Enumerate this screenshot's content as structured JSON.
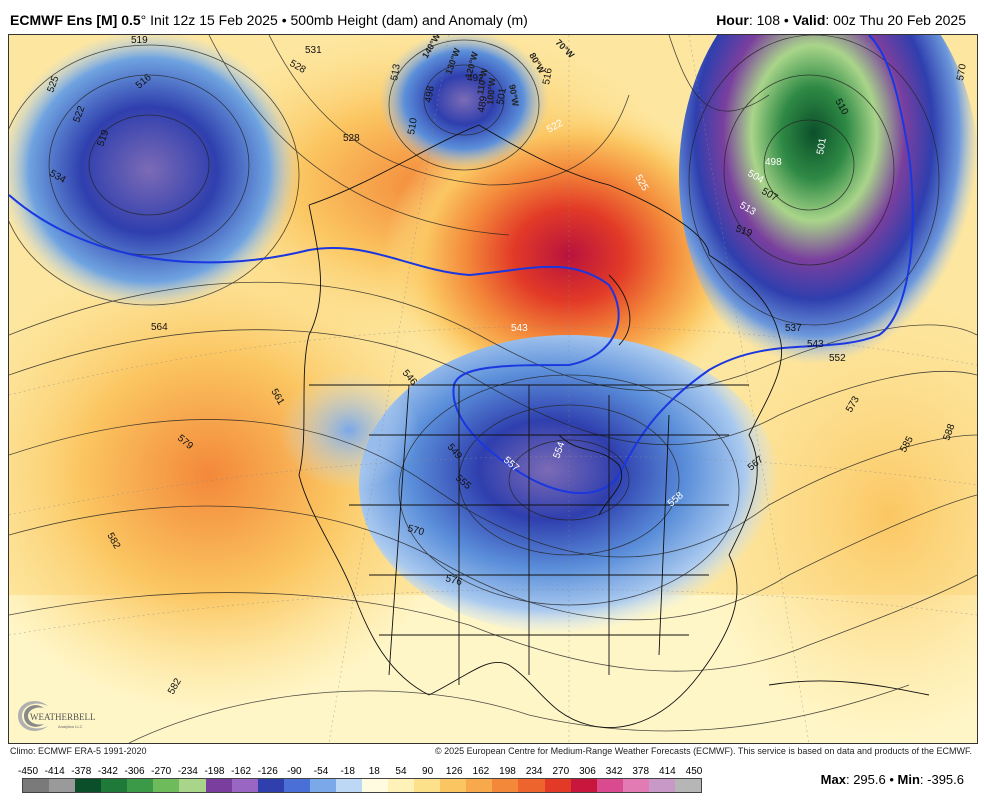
{
  "header": {
    "model": "ECMWF Ens [M] 0.5",
    "degree": "°",
    "init": " Init 12z 15 Feb 2025",
    "bullet": " • ",
    "field": "500mb Height (dam) and Anomaly (m)",
    "hour_label": "Hour",
    "hour_value": ": 108",
    "valid_label": "Valid",
    "valid_value": ": 00z Thu 20 Feb 2025"
  },
  "map": {
    "contour_labels": [
      "519",
      "525",
      "522",
      "519",
      "516",
      "534",
      "531",
      "528",
      "513",
      "510",
      "498",
      "492",
      "489",
      "501",
      "516",
      "522",
      "525",
      "528",
      "510",
      "498",
      "501",
      "504",
      "507",
      "513",
      "519",
      "537",
      "543",
      "552",
      "546",
      "543",
      "564",
      "561",
      "579",
      "582",
      "582",
      "549",
      "557",
      "554",
      "555",
      "558",
      "567",
      "570",
      "576",
      "573",
      "585",
      "588",
      "570"
    ],
    "meridian_labels": [
      "140°W",
      "130°W",
      "120°W",
      "110°W",
      "100°W",
      "90°W",
      "80°W",
      "70°W"
    ],
    "colors": {
      "deep_low": "#2a46b4",
      "low": "#6fa3e0",
      "neutral": "#fdf8d7",
      "warm": "#f3b252",
      "hot": "#e63b22",
      "very_hot": "#c4163f",
      "normal_contour": "#1a37e0"
    }
  },
  "logo": {
    "text": "WEATHERBELL",
    "sub": "Analytics LLC"
  },
  "credits": {
    "climo": "Climo: ECMWF ERA-5 1991-2020",
    "copyright": "© 2025 European Centre for Medium-Range Weather Forecasts (ECMWF). This service is based on data and products of the ECMWF."
  },
  "scale": {
    "ticks": [
      "-450",
      "-414",
      "-378",
      "-342",
      "-306",
      "-270",
      "-234",
      "-198",
      "-162",
      "-126",
      "-90",
      "-54",
      "-18",
      "18",
      "54",
      "90",
      "126",
      "162",
      "198",
      "234",
      "270",
      "306",
      "342",
      "378",
      "414",
      "450"
    ],
    "colors": [
      "#7a7a7a",
      "#9a9a9a",
      "#0b4f2a",
      "#1f7a3a",
      "#3b9a48",
      "#6dbb5a",
      "#a9d58a",
      "#7a3f9e",
      "#9a66c4",
      "#2f3fae",
      "#4a6fd6",
      "#7aa8e8",
      "#bcd8f4",
      "#fffbe0",
      "#fff2b8",
      "#fde08a",
      "#fbc662",
      "#f8a94b",
      "#f3883a",
      "#ee642d",
      "#e23a27",
      "#c8163c",
      "#d94a8f",
      "#e27ab4",
      "#c898c6",
      "#b6b6b6"
    ]
  },
  "maxmin": {
    "max_label": "Max",
    "max_value": ": 295.6",
    "sep": " • ",
    "min_label": "Min",
    "min_value": ": -395.6"
  }
}
